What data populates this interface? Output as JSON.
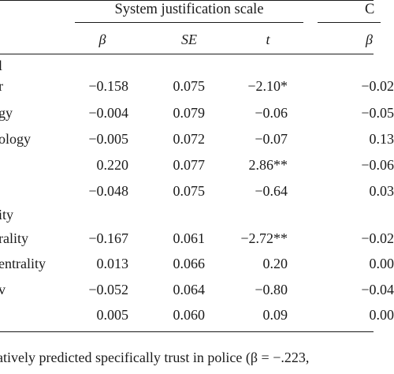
{
  "table": {
    "group_headers": {
      "system_justification": "System justification scale",
      "next_scale_fragment": "C"
    },
    "column_headers": {
      "beta": "β",
      "se": "SE",
      "t": "t",
      "next_beta": "β"
    },
    "rows": [
      {
        "label": "l",
        "beta": "",
        "se": "",
        "t": "",
        "next": ""
      },
      {
        "label": "r",
        "beta": "−0.158",
        "se": "0.075",
        "t": "−2.10*",
        "next": "−0.02"
      },
      {
        "label": "gy",
        "beta": "−0.004",
        "se": "0.079",
        "t": "−0.06",
        "next": "−0.05"
      },
      {
        "label": "ology",
        "beta": "−0.005",
        "se": "0.072",
        "t": "−0.07",
        "next": "0.13"
      },
      {
        "label": "",
        "beta": "0.220",
        "se": "0.077",
        "t": "2.86**",
        "next": "−0.06"
      },
      {
        "label": "",
        "beta": "−0.048",
        "se": "0.075",
        "t": "−0.64",
        "next": "0.03"
      },
      {
        "label": "ity",
        "beta": "",
        "se": "",
        "t": "",
        "next": ""
      },
      {
        "label": "rality",
        "beta": "−0.167",
        "se": "0.061",
        "t": "−2.72**",
        "next": "−0.02"
      },
      {
        "label": "entrality",
        "beta": "0.013",
        "se": "0.066",
        "t": "0.20",
        "next": "0.00"
      },
      {
        "label": "v",
        "beta": "−0.052",
        "se": "0.064",
        "t": "−0.80",
        "next": "−0.04"
      },
      {
        "label": "",
        "beta": "0.005",
        "se": "0.060",
        "t": "0.09",
        "next": "0.00"
      }
    ]
  },
  "footnote": "atively predicted specifically trust in police (β = −.223,"
}
